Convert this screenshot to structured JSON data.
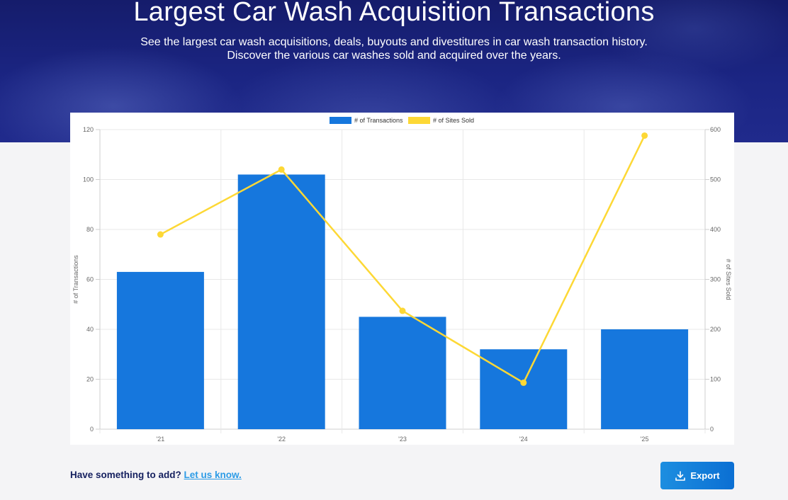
{
  "hero": {
    "title": "Largest Car Wash Acquisition Transactions",
    "subtitle_line1": "See the largest car wash acquisitions, deals, buyouts and divestitures in car wash transaction history.",
    "subtitle_line2": "Discover the various car washes sold and acquired over the years."
  },
  "footer": {
    "prompt": "Have something to add?",
    "link_label": "Let us know.",
    "export_label": "Export",
    "export_icon": "download-icon"
  },
  "colors": {
    "bar": "#1677dd",
    "line": "#fdd835",
    "hero_bg": "#1b2583",
    "link": "#2c9be6"
  },
  "chart_data": {
    "type": "bar",
    "categories": [
      "'21",
      "'22",
      "'23",
      "'24",
      "'25"
    ],
    "series": [
      {
        "name": "# of Transactions",
        "type": "bar",
        "axis": "left",
        "values": [
          63,
          102,
          45,
          32,
          40
        ]
      },
      {
        "name": "# of Sites Sold",
        "type": "line",
        "axis": "right",
        "values": [
          390,
          520,
          237,
          93,
          588
        ]
      }
    ],
    "ylabel": "# of Transactions",
    "y2label": "# of Sites Sold",
    "ylim": [
      0,
      120
    ],
    "y2lim": [
      0,
      600
    ],
    "yticks": [
      0,
      20,
      40,
      60,
      80,
      100,
      120
    ],
    "y2ticks": [
      0,
      100,
      200,
      300,
      400,
      500,
      600
    ],
    "legend_position": "top",
    "grid": true
  }
}
